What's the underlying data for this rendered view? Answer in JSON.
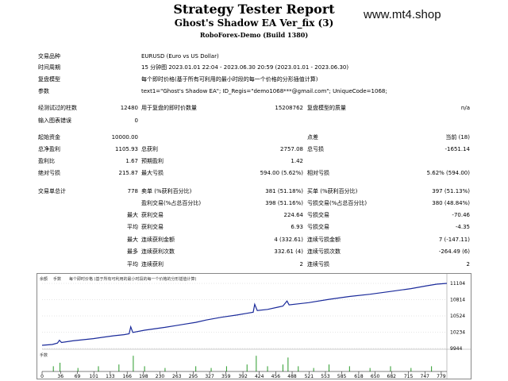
{
  "header": {
    "title": "Strategy Tester Report",
    "subtitle": "Ghost's Shadow EA Ver_fix (3)",
    "build": "RoboForex-Demo (Build 1380)",
    "watermark": "www.mt4.shop"
  },
  "info": [
    {
      "label": "交易品种",
      "value": "EURUSD (Euro vs US Dollar)"
    },
    {
      "label": "时间周期",
      "value": "15 分钟图 2023.01.01 22:04 - 2023.06.30 20:59 (2023.01.01 - 2023.06.30)"
    },
    {
      "label": "复盘模型",
      "value": "每个即时价格(基于所有可利用的最小时段的每一个价格的分形插值计算)"
    },
    {
      "label": "参数",
      "value": "text1=\"Ghost's Shadow EA\"; ID_Regis=\"demo1068***@gmail.com\"; UniqueCode=1068;"
    }
  ],
  "bars_tested": {
    "label": "经测试过的柱数",
    "value": "12480",
    "label2": "用于复盘的即时价数量",
    "value2": "15208762",
    "label3": "复盘模型的质量",
    "value3": "n/a"
  },
  "mismatch": {
    "label": "输入图表错误",
    "value": "0"
  },
  "summary": {
    "initial_deposit": {
      "label": "起始资金",
      "value": "10000.00",
      "label3": "点差",
      "value3": "当前 (18)"
    },
    "net_profit": {
      "label": "总净盈利",
      "value": "1105.93",
      "label2": "总获利",
      "value2": "2757.08",
      "label3": "总亏损",
      "value3": "-1651.14"
    },
    "profit_factor": {
      "label": "盈利比",
      "value": "1.67",
      "label2": "预期盈利",
      "value2": "1.42"
    },
    "abs_drawdown": {
      "label": "绝对亏损",
      "value": "215.87",
      "label2": "最大亏损",
      "value2": "594.00 (5.62%)",
      "label3": "相对亏损",
      "value3": "5.62% (594.00)"
    }
  },
  "trades": {
    "total": {
      "label": "交易单总计",
      "value": "778",
      "label2": "卖单 (%获利百分比)",
      "value2": "381 (51.18%)",
      "label3": "买单 (%获利百分比)",
      "value3": "397 (51.13%)"
    },
    "profit_trades": {
      "label2": "盈利交易(%占总百分比)",
      "value2": "398 (51.16%)",
      "label3": "亏损交易(%占总百分比)",
      "value3": "380 (48.84%)"
    },
    "largest": {
      "label": "最大",
      "label2": "获利交易",
      "value2": "224.64",
      "label3": "亏损交易",
      "value3": "-70.46"
    },
    "average": {
      "label": "平均",
      "label2": "获利交易",
      "value2": "6.93",
      "label3": "亏损交易",
      "value3": "-4.35"
    },
    "max_consec": {
      "label": "最大",
      "label2": "连续获利金额",
      "value2": "4 (332.61)",
      "label3": "连续亏损金额",
      "value3": "7 (-147.11)"
    },
    "max_consec_amt": {
      "label": "最多",
      "label2": "连续获利次数",
      "value2": "332.61 (4)",
      "label3": "连续亏损次数",
      "value3": "-264.49 (6)"
    },
    "avg_consec": {
      "label": "平均",
      "label2": "连续获利",
      "value2": "2",
      "label3": "连续亏损",
      "value3": "2"
    }
  },
  "chart_data": {
    "type": "line",
    "legend": [
      "余额",
      "手数",
      "每个即时价格 (基于所有可利用的最小时段的每一个价格的分形插值计算)"
    ],
    "volume_label": "手数",
    "y_ticks": [
      "11104",
      "10814",
      "10524",
      "10234",
      "9944"
    ],
    "x_ticks": [
      "0",
      "36",
      "69",
      "101",
      "133",
      "166",
      "198",
      "230",
      "263",
      "295",
      "327",
      "359",
      "392",
      "424",
      "456",
      "488",
      "521",
      "553",
      "585",
      "618",
      "650",
      "682",
      "715",
      "747",
      "779"
    ],
    "ylim": [
      9944,
      11104
    ],
    "xlim": [
      0,
      790
    ],
    "balance": [
      [
        0,
        10000
      ],
      [
        20,
        10015
      ],
      [
        30,
        10040
      ],
      [
        34,
        10090
      ],
      [
        38,
        10050
      ],
      [
        60,
        10080
      ],
      [
        100,
        10120
      ],
      [
        140,
        10170
      ],
      [
        160,
        10190
      ],
      [
        170,
        10205
      ],
      [
        173,
        10330
      ],
      [
        177,
        10230
      ],
      [
        200,
        10270
      ],
      [
        240,
        10320
      ],
      [
        260,
        10350
      ],
      [
        280,
        10380
      ],
      [
        300,
        10410
      ],
      [
        320,
        10450
      ],
      [
        350,
        10500
      ],
      [
        380,
        10540
      ],
      [
        400,
        10570
      ],
      [
        412,
        10590
      ],
      [
        415,
        10730
      ],
      [
        420,
        10620
      ],
      [
        440,
        10640
      ],
      [
        460,
        10680
      ],
      [
        470,
        10700
      ],
      [
        478,
        10790
      ],
      [
        482,
        10720
      ],
      [
        520,
        10760
      ],
      [
        560,
        10820
      ],
      [
        600,
        10870
      ],
      [
        640,
        10910
      ],
      [
        680,
        10960
      ],
      [
        720,
        11010
      ],
      [
        750,
        11060
      ],
      [
        770,
        11090
      ],
      [
        790,
        11104
      ]
    ],
    "volume_spikes": [
      [
        22,
        0.3
      ],
      [
        35,
        0.5
      ],
      [
        70,
        0.2
      ],
      [
        110,
        0.3
      ],
      [
        150,
        0.4
      ],
      [
        178,
        0.9
      ],
      [
        200,
        0.3
      ],
      [
        240,
        0.2
      ],
      [
        300,
        0.3
      ],
      [
        330,
        0.2
      ],
      [
        360,
        0.3
      ],
      [
        400,
        0.4
      ],
      [
        418,
        0.9
      ],
      [
        440,
        0.3
      ],
      [
        470,
        0.4
      ],
      [
        480,
        0.8
      ],
      [
        500,
        0.3
      ],
      [
        530,
        0.2
      ],
      [
        560,
        0.4
      ],
      [
        600,
        0.3
      ],
      [
        640,
        0.2
      ],
      [
        680,
        0.3
      ],
      [
        720,
        0.2
      ],
      [
        760,
        0.3
      ]
    ]
  }
}
